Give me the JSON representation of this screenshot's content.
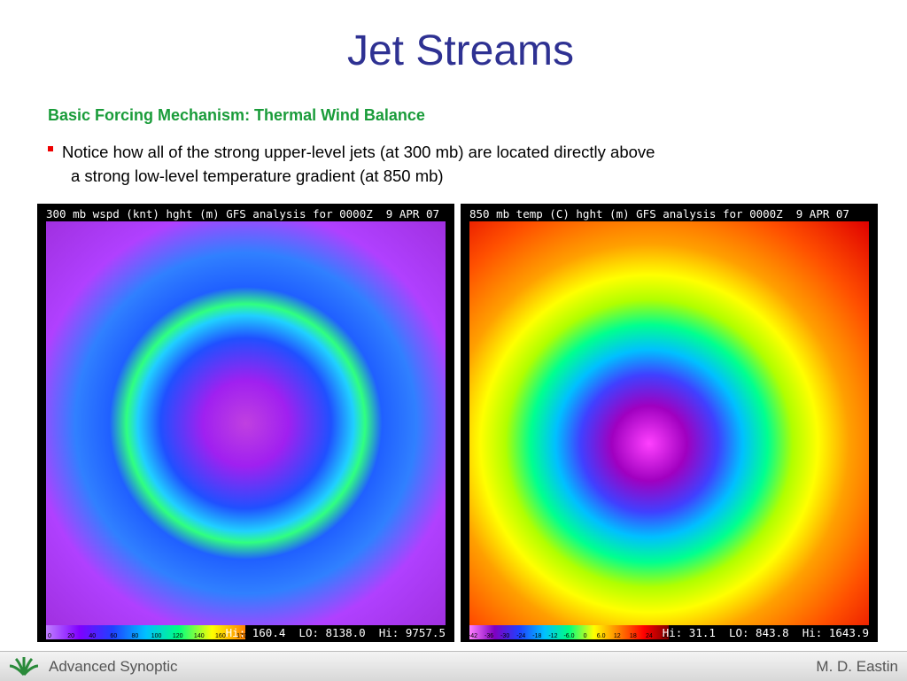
{
  "slide": {
    "title": "Jet Streams",
    "subtitle": "Basic Forcing Mechanism:  Thermal Wind Balance",
    "bullet": {
      "line1": "Notice how all of the strong upper-level jets (at 300 mb) are located directly above",
      "line2": "a strong low-level temperature gradient (at 850 mb)"
    },
    "maps": [
      {
        "header": "300 mb wspd (knt) hght (m) GFS analysis for 0000Z  9 APR 07",
        "stats": "Hi: 160.4  LO: 8138.0  Hi: 9757.5",
        "colorbar": [
          "0",
          "20",
          "40",
          "60",
          "80",
          "100",
          "120",
          "140",
          "160",
          "170"
        ]
      },
      {
        "header": "850 mb temp (C) hght (m) GFS analysis for 0000Z  9 APR 07",
        "stats": "Hi: 31.1  LO: 843.8  Hi: 1643.9",
        "colorbar": [
          "-42",
          "-36",
          "-30",
          "-24",
          "-18",
          "-12",
          "-6.0",
          "0",
          "6.0",
          "12",
          "18",
          "24",
          "30"
        ]
      }
    ],
    "footer": {
      "left": "Advanced Synoptic",
      "right": "M. D. Eastin"
    }
  }
}
